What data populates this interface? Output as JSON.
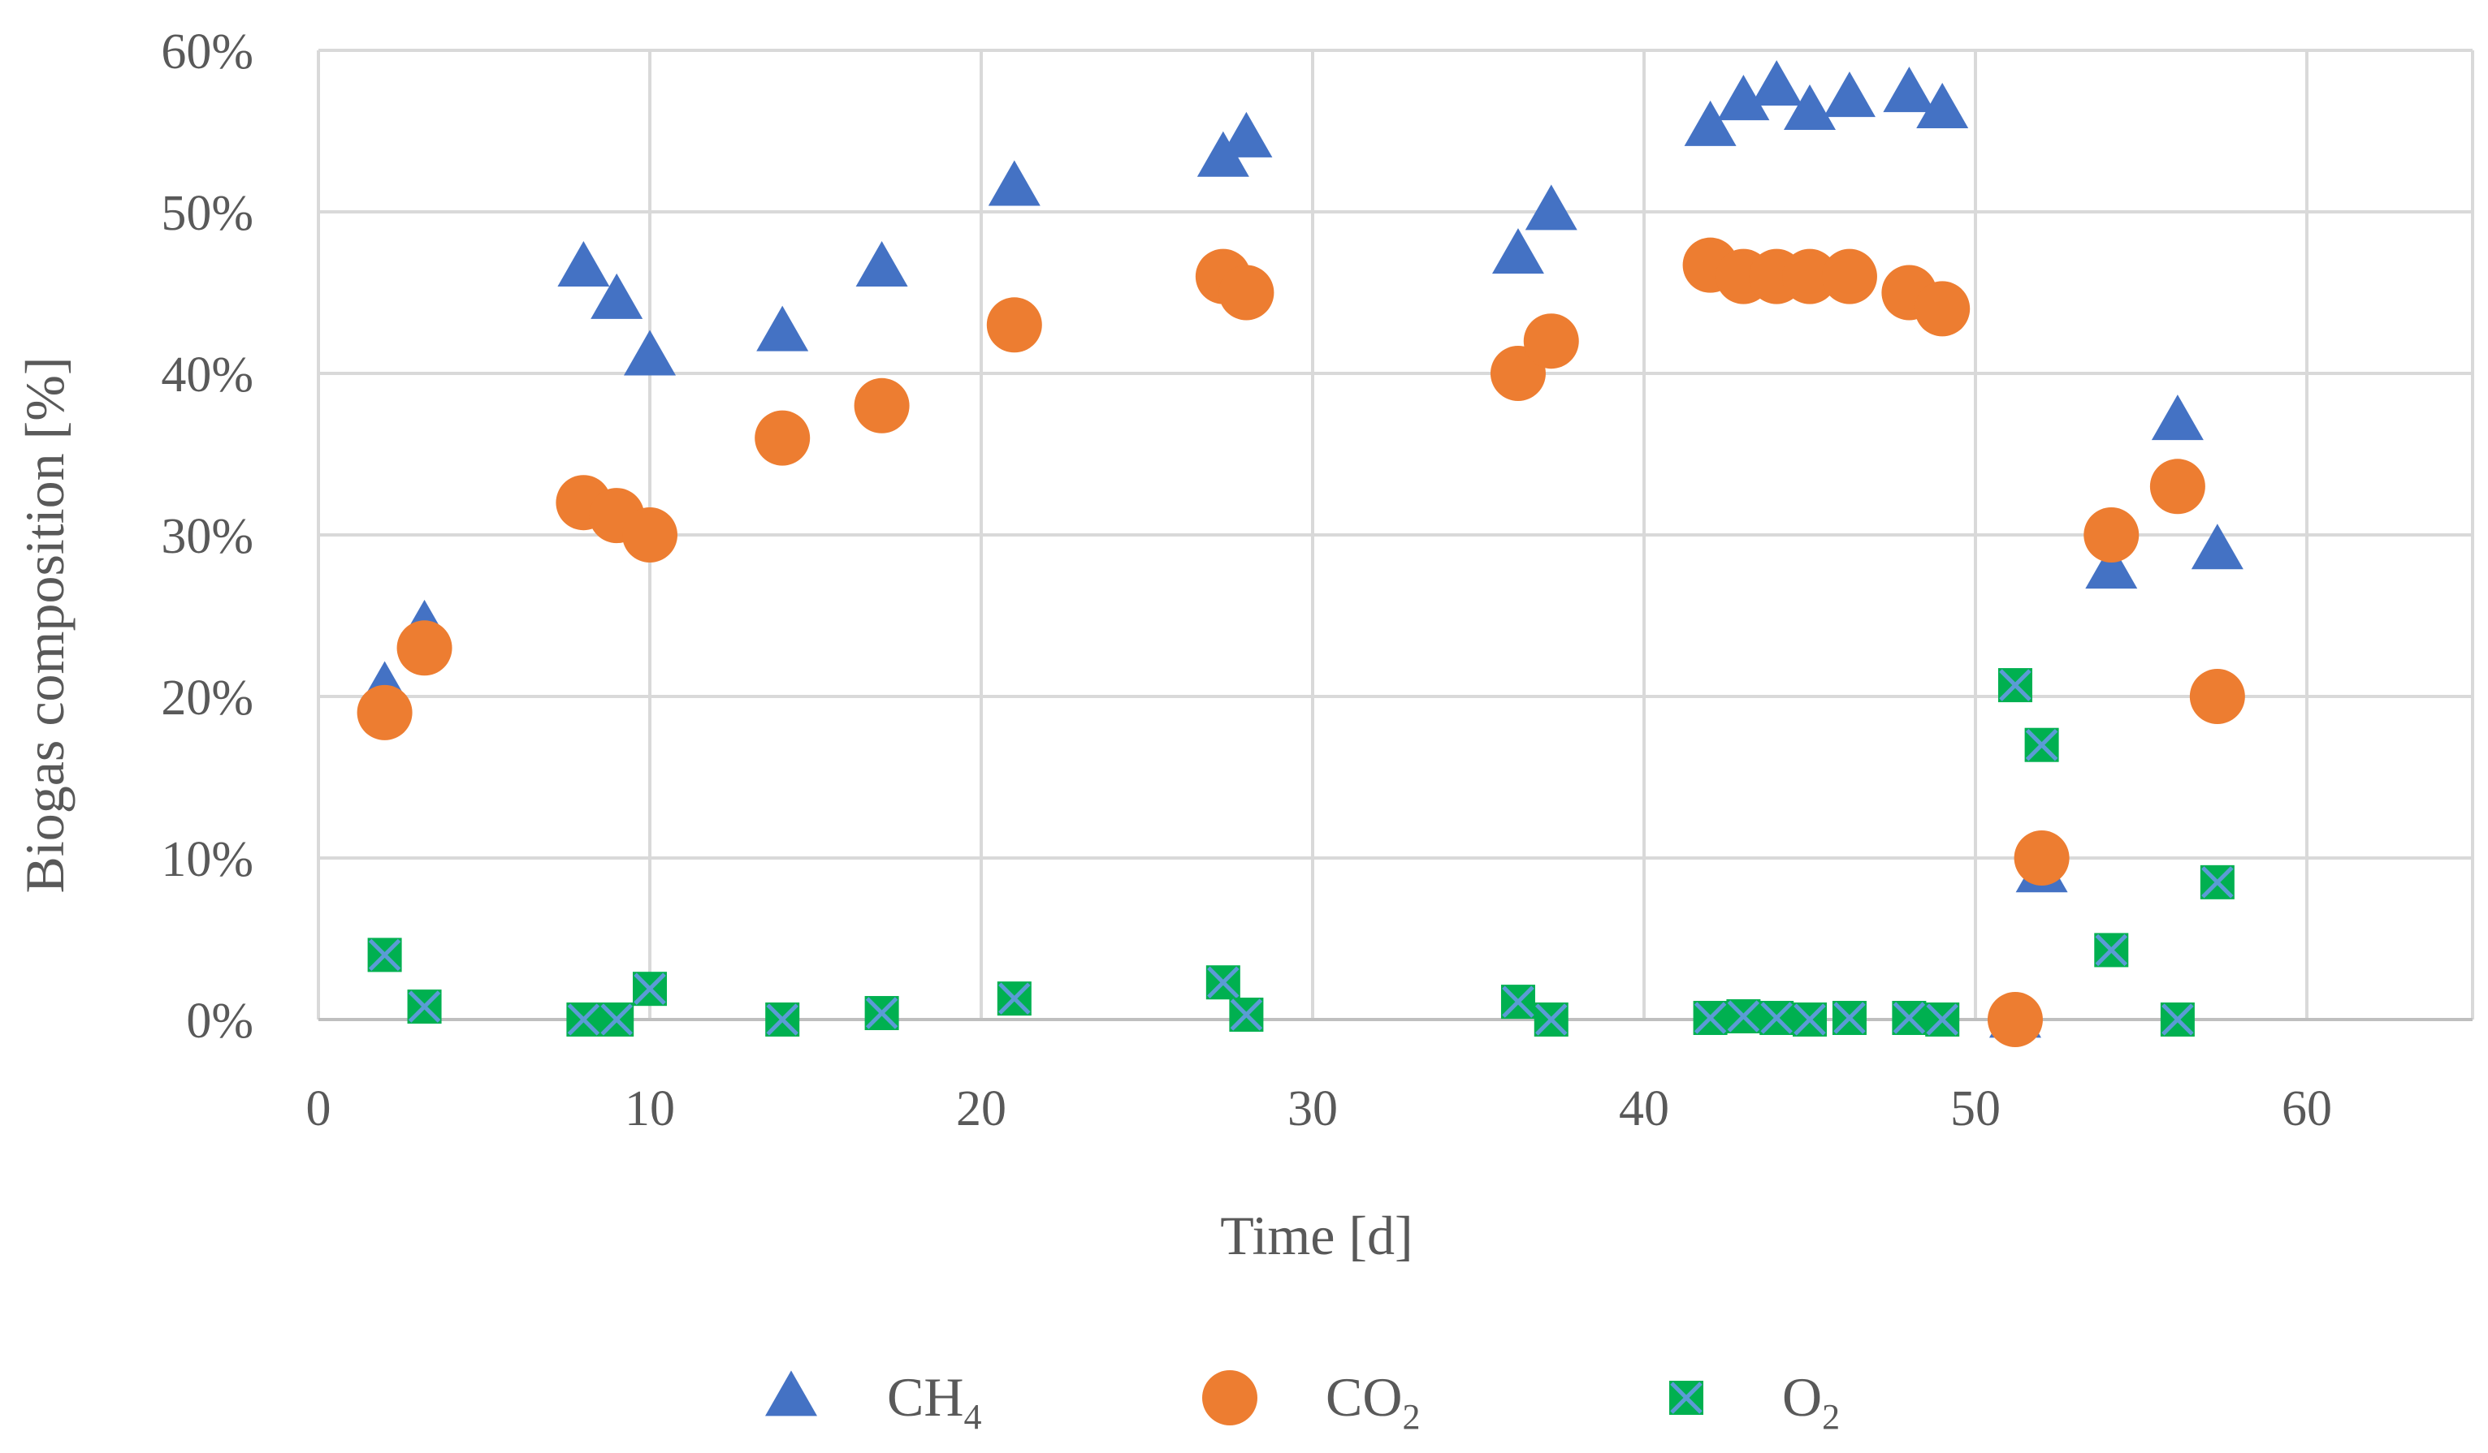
{
  "chart_data": {
    "type": "scatter",
    "xlabel": "Time [d]",
    "ylabel": "Biogas composition [%]",
    "xlim": [
      0,
      65
    ],
    "ylim": [
      0,
      60
    ],
    "x_ticks": [
      0,
      10,
      20,
      30,
      40,
      50,
      60
    ],
    "y_ticks": [
      0,
      10,
      20,
      30,
      40,
      50,
      60
    ],
    "x_tick_labels": [
      "0",
      "10",
      "20",
      "30",
      "40",
      "50",
      "60"
    ],
    "y_tick_labels": [
      "0%",
      "10%",
      "20%",
      "30%",
      "40%",
      "50%",
      "60%"
    ],
    "grid": true,
    "legend_position": "bottom",
    "series": [
      {
        "name": "CH4",
        "label_main": "CH",
        "label_sub": "4",
        "marker": "triangle",
        "color": "#4472C4",
        "points": [
          [
            2,
            20.5
          ],
          [
            3.2,
            24.3
          ],
          [
            8,
            46.5
          ],
          [
            9,
            44.5
          ],
          [
            10,
            41
          ],
          [
            14,
            42.5
          ],
          [
            17,
            46.5
          ],
          [
            21,
            51.5
          ],
          [
            27.3,
            53.3
          ],
          [
            28,
            54.5
          ],
          [
            36.2,
            47.3
          ],
          [
            37.2,
            50
          ],
          [
            42,
            55.2
          ],
          [
            43,
            56.8
          ],
          [
            44,
            57.7
          ],
          [
            45,
            56.2
          ],
          [
            46.2,
            57
          ],
          [
            48,
            57.3
          ],
          [
            49,
            56.3
          ],
          [
            51.2,
            0
          ],
          [
            52,
            9
          ],
          [
            54.1,
            27.8
          ],
          [
            56.1,
            37
          ],
          [
            57.3,
            29
          ]
        ]
      },
      {
        "name": "CO2",
        "label_main": "CO",
        "label_sub": "2",
        "marker": "circle",
        "color": "#ED7D31",
        "points": [
          [
            2,
            19
          ],
          [
            3.2,
            23
          ],
          [
            8,
            32
          ],
          [
            9,
            31.2
          ],
          [
            10,
            30
          ],
          [
            14,
            36
          ],
          [
            17,
            38
          ],
          [
            21,
            43
          ],
          [
            27.3,
            46
          ],
          [
            28,
            45
          ],
          [
            36.2,
            40
          ],
          [
            37.2,
            42
          ],
          [
            42,
            46.7
          ],
          [
            43,
            46
          ],
          [
            44,
            46
          ],
          [
            45,
            46
          ],
          [
            46.2,
            46
          ],
          [
            48,
            45
          ],
          [
            49,
            44
          ],
          [
            51.2,
            0
          ],
          [
            52,
            10
          ],
          [
            54.1,
            30
          ],
          [
            56.1,
            33
          ],
          [
            57.3,
            20
          ]
        ]
      },
      {
        "name": "O2",
        "label_main": "O",
        "label_sub": "2",
        "marker": "x-square",
        "color": "#00B050",
        "points": [
          [
            2,
            4
          ],
          [
            3.2,
            0.8
          ],
          [
            8,
            0
          ],
          [
            9,
            0
          ],
          [
            10,
            1.9
          ],
          [
            14,
            0
          ],
          [
            17,
            0.4
          ],
          [
            21,
            1.3
          ],
          [
            27.3,
            2.3
          ],
          [
            28,
            0.3
          ],
          [
            36.2,
            1.1
          ],
          [
            37.2,
            0
          ],
          [
            42,
            0.1
          ],
          [
            43,
            0.2
          ],
          [
            44,
            0.1
          ],
          [
            45,
            0
          ],
          [
            46.2,
            0.1
          ],
          [
            48,
            0.1
          ],
          [
            49,
            0
          ],
          [
            51.2,
            20.7
          ],
          [
            52,
            17
          ],
          [
            54.1,
            4.3
          ],
          [
            56.1,
            0
          ],
          [
            57.3,
            8.5
          ]
        ]
      }
    ]
  }
}
